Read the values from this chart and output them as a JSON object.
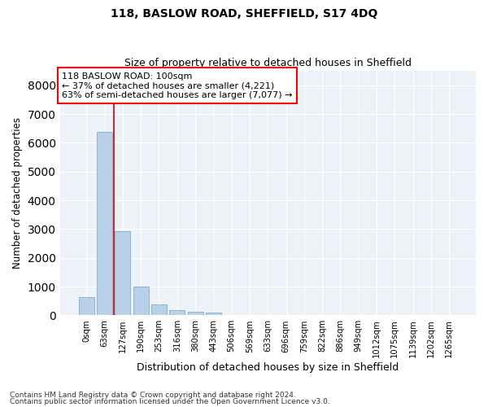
{
  "title1": "118, BASLOW ROAD, SHEFFIELD, S17 4DQ",
  "title2": "Size of property relative to detached houses in Sheffield",
  "xlabel": "Distribution of detached houses by size in Sheffield",
  "ylabel": "Number of detached properties",
  "bar_color": "#b8d0e8",
  "bar_edge_color": "#8ab4d4",
  "background_color": "#edf2f9",
  "grid_color": "#ffffff",
  "categories": [
    "0sqm",
    "63sqm",
    "127sqm",
    "190sqm",
    "253sqm",
    "316sqm",
    "380sqm",
    "443sqm",
    "506sqm",
    "569sqm",
    "633sqm",
    "696sqm",
    "759sqm",
    "822sqm",
    "886sqm",
    "949sqm",
    "1012sqm",
    "1075sqm",
    "1139sqm",
    "1202sqm",
    "1265sqm"
  ],
  "values": [
    620,
    6390,
    2920,
    1000,
    390,
    175,
    130,
    90,
    0,
    0,
    0,
    0,
    0,
    0,
    0,
    0,
    0,
    0,
    0,
    0,
    0
  ],
  "ylim": [
    0,
    8500
  ],
  "yticks": [
    0,
    1000,
    2000,
    3000,
    4000,
    5000,
    6000,
    7000,
    8000
  ],
  "annotation_text": "118 BASLOW ROAD: 100sqm\n← 37% of detached houses are smaller (4,221)\n63% of semi-detached houses are larger (7,077) →",
  "vline_x": 1.5,
  "footer_line1": "Contains HM Land Registry data © Crown copyright and database right 2024.",
  "footer_line2": "Contains public sector information licensed under the Open Government Licence v3.0."
}
